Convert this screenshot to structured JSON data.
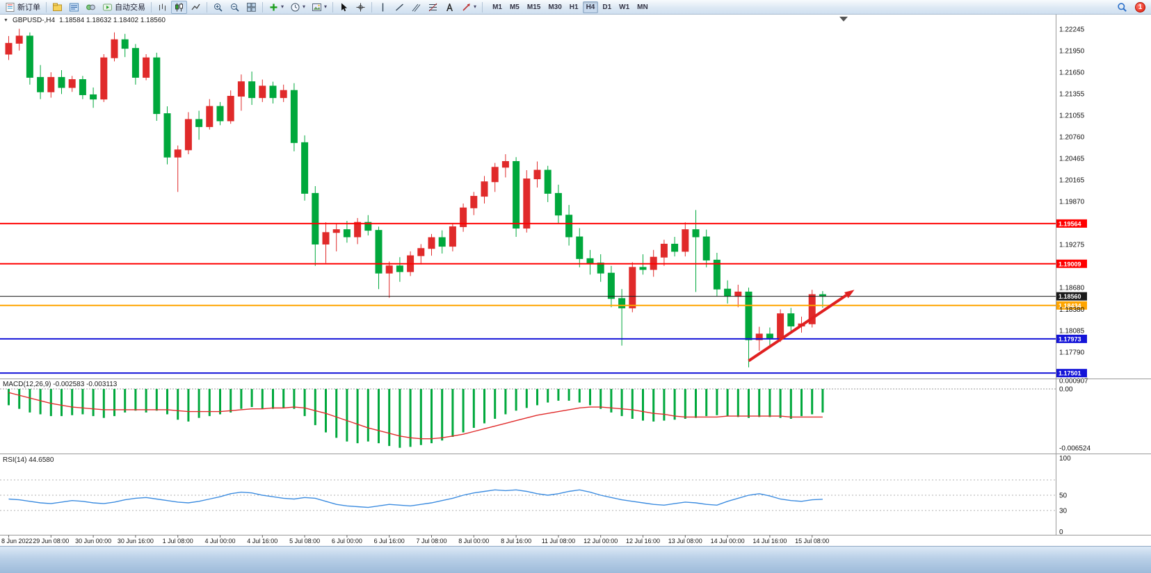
{
  "toolbar": {
    "new_order_label": "新订单",
    "auto_trading_label": "自动交易",
    "notification_count": "1",
    "active_timeframe": "H4",
    "timeframes": [
      "M1",
      "M5",
      "M15",
      "M30",
      "H1",
      "H4",
      "D1",
      "W1",
      "MN"
    ],
    "items": [
      {
        "type": "button",
        "name": "new-order",
        "icon": "new-order-icon",
        "label": "新订单"
      },
      {
        "type": "sep"
      },
      {
        "type": "button",
        "name": "profiles",
        "icon": "profiles-icon"
      },
      {
        "type": "button",
        "name": "market-watch",
        "icon": "market-watch-icon"
      },
      {
        "type": "button",
        "name": "navigator",
        "icon": "navigator-icon"
      },
      {
        "type": "button",
        "name": "auto-trading",
        "icon": "autotrading-icon",
        "label": "自动交易"
      },
      {
        "type": "sep"
      },
      {
        "type": "button",
        "name": "bar-chart",
        "icon": "bar-chart-icon"
      },
      {
        "type": "button",
        "name": "candlestick-chart",
        "icon": "candles-icon",
        "active": true
      },
      {
        "type": "button",
        "name": "line-chart",
        "icon": "line-chart-icon"
      },
      {
        "type": "sep"
      },
      {
        "type": "button",
        "name": "zoom-in",
        "icon": "zoom-in-icon"
      },
      {
        "type": "button",
        "name": "zoom-out",
        "icon": "zoom-out-icon"
      },
      {
        "type": "button",
        "name": "tile-windows",
        "icon": "tile-windows-icon"
      },
      {
        "type": "sep"
      },
      {
        "type": "button",
        "name": "indicators",
        "icon": "indicators-icon",
        "caret": true
      },
      {
        "type": "button",
        "name": "periods",
        "icon": "periods-icon",
        "caret": true
      },
      {
        "type": "button",
        "name": "templates",
        "icon": "templates-icon",
        "caret": true
      },
      {
        "type": "sep"
      },
      {
        "type": "button",
        "name": "cursor",
        "icon": "cursor-icon"
      },
      {
        "type": "button",
        "name": "crosshair",
        "icon": "crosshair-icon"
      },
      {
        "type": "sep"
      },
      {
        "type": "button",
        "name": "vertical-line",
        "icon": "vline-icon"
      },
      {
        "type": "button",
        "name": "trendline",
        "icon": "trendline-icon"
      },
      {
        "type": "button",
        "name": "equidistant-channel",
        "icon": "channel-icon"
      },
      {
        "type": "button",
        "name": "fibonacci",
        "ic": "",
        "icon": "fibo-icon"
      },
      {
        "type": "button",
        "name": "text-tool",
        "icon": "text-icon"
      },
      {
        "type": "button",
        "name": "arrows-tool",
        "icon": "arrow-icon",
        "caret": true
      },
      {
        "type": "sep"
      }
    ]
  },
  "chart": {
    "symbol_label": "GBPUSD-,H4",
    "ohlc_text": "1.18584 1.18632 1.18402 1.18560",
    "macd_label": "MACD(12,26,9) -0.002583 -0.003113",
    "rsi_label": "RSI(14) 44.6580"
  },
  "chart_data": {
    "type": "candlestick",
    "symbol": "GBPUSD-",
    "timeframe": "H4",
    "bull_color": "#e02a2a",
    "bear_color": "#00a83c",
    "label_every": 4,
    "time_labels": [
      "8 Jun 2022",
      "29 Jun 08:00",
      "30 Jun 00:00",
      "30 Jun 16:00",
      "1 Jul 08:00",
      "4 Jul 00:00",
      "4 Jul 16:00",
      "5 Jul 08:00",
      "6 Jul 00:00",
      "6 Jul 16:00",
      "7 Jul 08:00",
      "8 Jul 00:00",
      "8 Jul 16:00",
      "11 Jul 08:00",
      "12 Jul 00:00",
      "12 Jul 16:00",
      "13 Jul 08:00",
      "14 Jul 00:00",
      "14 Jul 16:00",
      "15 Jul 08:00"
    ],
    "price_axis_labels": [
      "1.22245",
      "1.21950",
      "1.21650",
      "1.21355",
      "1.21055",
      "1.20760",
      "1.20465",
      "1.20165",
      "1.19870",
      "1.19275",
      "1.18680",
      "1.18380",
      "1.18085",
      "1.17790"
    ],
    "candles": [
      [
        1.219,
        1.2215,
        1.2182,
        1.2205
      ],
      [
        1.2205,
        1.2225,
        1.2195,
        1.2215
      ],
      [
        1.2215,
        1.222,
        1.2148,
        1.2158
      ],
      [
        1.2158,
        1.2175,
        1.2128,
        1.2138
      ],
      [
        1.2138,
        1.2165,
        1.213,
        1.2158
      ],
      [
        1.2158,
        1.2168,
        1.2135,
        1.2144
      ],
      [
        1.2144,
        1.216,
        1.2138,
        1.2155
      ],
      [
        1.2155,
        1.216,
        1.2128,
        1.2134
      ],
      [
        1.2134,
        1.2144,
        1.2116,
        1.2128
      ],
      [
        1.2128,
        1.219,
        1.2124,
        1.2185
      ],
      [
        1.2185,
        1.222,
        1.218,
        1.221
      ],
      [
        1.221,
        1.2218,
        1.2186,
        1.2198
      ],
      [
        1.2198,
        1.2204,
        1.2148,
        1.2158
      ],
      [
        1.2158,
        1.219,
        1.2154,
        1.2185
      ],
      [
        1.2185,
        1.2192,
        1.2098,
        1.2108
      ],
      [
        1.2108,
        1.2118,
        1.2038,
        1.2048
      ],
      [
        1.2048,
        1.2064,
        1.2,
        1.2058
      ],
      [
        1.2058,
        1.211,
        1.2052,
        1.21
      ],
      [
        1.21,
        1.2112,
        1.2072,
        1.209
      ],
      [
        1.209,
        1.2128,
        1.2086,
        1.2118
      ],
      [
        1.2118,
        1.2124,
        1.2092,
        1.2098
      ],
      [
        1.2098,
        1.214,
        1.2094,
        1.2132
      ],
      [
        1.2132,
        1.2162,
        1.2112,
        1.2152
      ],
      [
        1.2152,
        1.2166,
        1.212,
        1.213
      ],
      [
        1.213,
        1.2155,
        1.2124,
        1.2146
      ],
      [
        1.2146,
        1.2152,
        1.2122,
        1.213
      ],
      [
        1.213,
        1.2148,
        1.2124,
        1.214
      ],
      [
        1.214,
        1.215,
        1.2056,
        1.2068
      ],
      [
        1.2068,
        1.2078,
        1.1988,
        1.1998
      ],
      [
        1.1998,
        1.2008,
        1.1898,
        1.1928
      ],
      [
        1.1928,
        1.1958,
        1.1902,
        1.1944
      ],
      [
        1.1944,
        1.1956,
        1.1918,
        1.1948
      ],
      [
        1.1948,
        1.196,
        1.193,
        1.1938
      ],
      [
        1.1938,
        1.1964,
        1.1928,
        1.1958
      ],
      [
        1.1958,
        1.1968,
        1.194,
        1.1947
      ],
      [
        1.1947,
        1.1952,
        1.1866,
        1.1888
      ],
      [
        1.1888,
        1.1904,
        1.1854,
        1.1898
      ],
      [
        1.1898,
        1.191,
        1.1876,
        1.189
      ],
      [
        1.189,
        1.1918,
        1.1884,
        1.1912
      ],
      [
        1.1912,
        1.1928,
        1.19,
        1.1922
      ],
      [
        1.1922,
        1.1942,
        1.1912,
        1.1937
      ],
      [
        1.1937,
        1.1947,
        1.1915,
        1.1925
      ],
      [
        1.1925,
        1.1957,
        1.1918,
        1.1952
      ],
      [
        1.1952,
        1.1984,
        1.1945,
        1.1978
      ],
      [
        1.1978,
        1.2,
        1.1968,
        1.1994
      ],
      [
        1.1994,
        1.2022,
        1.1984,
        1.2014
      ],
      [
        1.2014,
        1.204,
        1.2,
        1.2034
      ],
      [
        1.2034,
        1.2052,
        1.202,
        1.2042
      ],
      [
        1.2042,
        1.2048,
        1.1938,
        1.195
      ],
      [
        1.195,
        1.203,
        1.1944,
        1.2018
      ],
      [
        1.2018,
        1.2042,
        1.2006,
        1.203
      ],
      [
        1.203,
        1.2036,
        1.1986,
        1.1998
      ],
      [
        1.1998,
        1.201,
        1.1956,
        1.1968
      ],
      [
        1.1968,
        1.1982,
        1.1926,
        1.1938
      ],
      [
        1.1938,
        1.195,
        1.1896,
        1.1908
      ],
      [
        1.1908,
        1.192,
        1.1886,
        1.1902
      ],
      [
        1.1902,
        1.1914,
        1.1876,
        1.1888
      ],
      [
        1.1888,
        1.1898,
        1.1841,
        1.1853
      ],
      [
        1.1853,
        1.1866,
        1.1788,
        1.184
      ],
      [
        1.184,
        1.1903,
        1.1834,
        1.1896
      ],
      [
        1.1896,
        1.1914,
        1.1886,
        1.1893
      ],
      [
        1.1893,
        1.192,
        1.1883,
        1.191
      ],
      [
        1.191,
        1.1934,
        1.1898,
        1.1928
      ],
      [
        1.1928,
        1.1938,
        1.1911,
        1.1918
      ],
      [
        1.1918,
        1.1958,
        1.1911,
        1.1948
      ],
      [
        1.1948,
        1.1975,
        1.1862,
        1.1938
      ],
      [
        1.1938,
        1.1948,
        1.1896,
        1.1906
      ],
      [
        1.1906,
        1.1916,
        1.1856,
        1.1866
      ],
      [
        1.1866,
        1.1878,
        1.1846,
        1.1856
      ],
      [
        1.1856,
        1.1872,
        1.1841,
        1.1862
      ],
      [
        1.1862,
        1.1868,
        1.1758,
        1.1796
      ],
      [
        1.1796,
        1.1814,
        1.1781,
        1.1804
      ],
      [
        1.1804,
        1.1813,
        1.1788,
        1.1798
      ],
      [
        1.1798,
        1.1838,
        1.1793,
        1.1832
      ],
      [
        1.1832,
        1.184,
        1.1808,
        1.1815
      ],
      [
        1.1815,
        1.1828,
        1.1806,
        1.1818
      ],
      [
        1.1818,
        1.1865,
        1.1813,
        1.18584
      ],
      [
        1.18584,
        1.18632,
        1.18402,
        1.1856
      ]
    ],
    "hlines": [
      {
        "price": 1.19564,
        "label": "1.19564",
        "color": "#ff0000",
        "width": 2
      },
      {
        "price": 1.19009,
        "label": "1.19009",
        "color": "#ff0000",
        "width": 2
      },
      {
        "price": 1.1856,
        "label": "1.18560",
        "color": "#1a1a1a",
        "width": 1
      },
      {
        "price": 1.18434,
        "label": "1.18434",
        "color": "#ffa500",
        "width": 2
      },
      {
        "price": 1.17973,
        "label": "1.17973",
        "color": "#1414d8",
        "width": 2
      },
      {
        "price": 1.17501,
        "label": "1.17501",
        "color": "#1414d8",
        "width": 2
      }
    ],
    "trend_arrow": {
      "from_idx": 70,
      "from_price": 1.1767,
      "to_idx": 80,
      "to_price": 1.1865,
      "color": "#e02020",
      "width": 4
    },
    "macd": {
      "params": "(12,26,9)",
      "hist_color": "#00a83c",
      "signal_color": "#e02a2a",
      "axis_labels": [
        "0.000907",
        "0.00",
        "-0.006524"
      ],
      "hist": [
        -0.0018,
        -0.0022,
        -0.0026,
        -0.0028,
        -0.003,
        -0.003,
        -0.0029,
        -0.0028,
        -0.003,
        -0.0032,
        -0.003,
        -0.0026,
        -0.0024,
        -0.0026,
        -0.0024,
        -0.0028,
        -0.0034,
        -0.0036,
        -0.0032,
        -0.003,
        -0.0028,
        -0.0026,
        -0.0022,
        -0.002,
        -0.0022,
        -0.0022,
        -0.0021,
        -0.0022,
        -0.003,
        -0.004,
        -0.0048,
        -0.0054,
        -0.0058,
        -0.006,
        -0.0058,
        -0.006,
        -0.0063,
        -0.0065,
        -0.0064,
        -0.0062,
        -0.006,
        -0.0057,
        -0.0053,
        -0.0048,
        -0.0043,
        -0.0038,
        -0.0033,
        -0.0028,
        -0.0024,
        -0.0021,
        -0.0018,
        -0.0015,
        -0.0013,
        -0.0013,
        -0.0015,
        -0.0018,
        -0.0022,
        -0.0026,
        -0.003,
        -0.0033,
        -0.0035,
        -0.0036,
        -0.0035,
        -0.0034,
        -0.0033,
        -0.0032,
        -0.003,
        -0.0029,
        -0.003,
        -0.0031,
        -0.0032,
        -0.0031,
        -0.0031,
        -0.0032,
        -0.0033,
        -0.003,
        -0.0028,
        -0.0026
      ],
      "signal": [
        -0.0004,
        -0.0007,
        -0.001,
        -0.0013,
        -0.0016,
        -0.0018,
        -0.002,
        -0.0021,
        -0.0022,
        -0.0023,
        -0.0023,
        -0.0023,
        -0.0023,
        -0.0023,
        -0.0023,
        -0.0023,
        -0.0024,
        -0.0025,
        -0.0025,
        -0.0025,
        -0.0025,
        -0.0024,
        -0.0023,
        -0.0022,
        -0.0022,
        -0.0021,
        -0.0021,
        -0.002,
        -0.0021,
        -0.0024,
        -0.0027,
        -0.0031,
        -0.0035,
        -0.0039,
        -0.0043,
        -0.0046,
        -0.0049,
        -0.0052,
        -0.0054,
        -0.0055,
        -0.0055,
        -0.0054,
        -0.0052,
        -0.005,
        -0.0047,
        -0.0044,
        -0.0041,
        -0.0038,
        -0.0035,
        -0.0032,
        -0.0029,
        -0.0027,
        -0.0025,
        -0.0023,
        -0.0021,
        -0.002,
        -0.002,
        -0.0021,
        -0.0022,
        -0.0023,
        -0.0025,
        -0.0027,
        -0.0028,
        -0.003,
        -0.0031,
        -0.0031,
        -0.0031,
        -0.0031,
        -0.003,
        -0.003,
        -0.003,
        -0.003,
        -0.003,
        -0.003,
        -0.0031,
        -0.0031,
        -0.0031,
        -0.0031
      ]
    },
    "rsi": {
      "period": 14,
      "line_color": "#3c8ce0",
      "levels": [
        70,
        50,
        30
      ],
      "axis_labels": [
        "100",
        "50",
        "30",
        "0"
      ],
      "values": [
        45,
        44,
        42,
        40,
        39,
        41,
        43,
        42,
        40,
        39,
        41,
        44,
        46,
        47,
        45,
        43,
        41,
        40,
        42,
        45,
        48,
        52,
        54,
        53,
        50,
        48,
        46,
        45,
        47,
        46,
        42,
        38,
        36,
        35,
        34,
        36,
        38,
        37,
        36,
        38,
        40,
        43,
        46,
        50,
        53,
        55,
        57,
        56,
        57,
        55,
        52,
        50,
        52,
        55,
        57,
        54,
        50,
        47,
        44,
        42,
        40,
        38,
        37,
        39,
        41,
        40,
        38,
        37,
        42,
        46,
        50,
        52,
        49,
        45,
        43,
        42,
        44,
        44.7
      ]
    }
  }
}
